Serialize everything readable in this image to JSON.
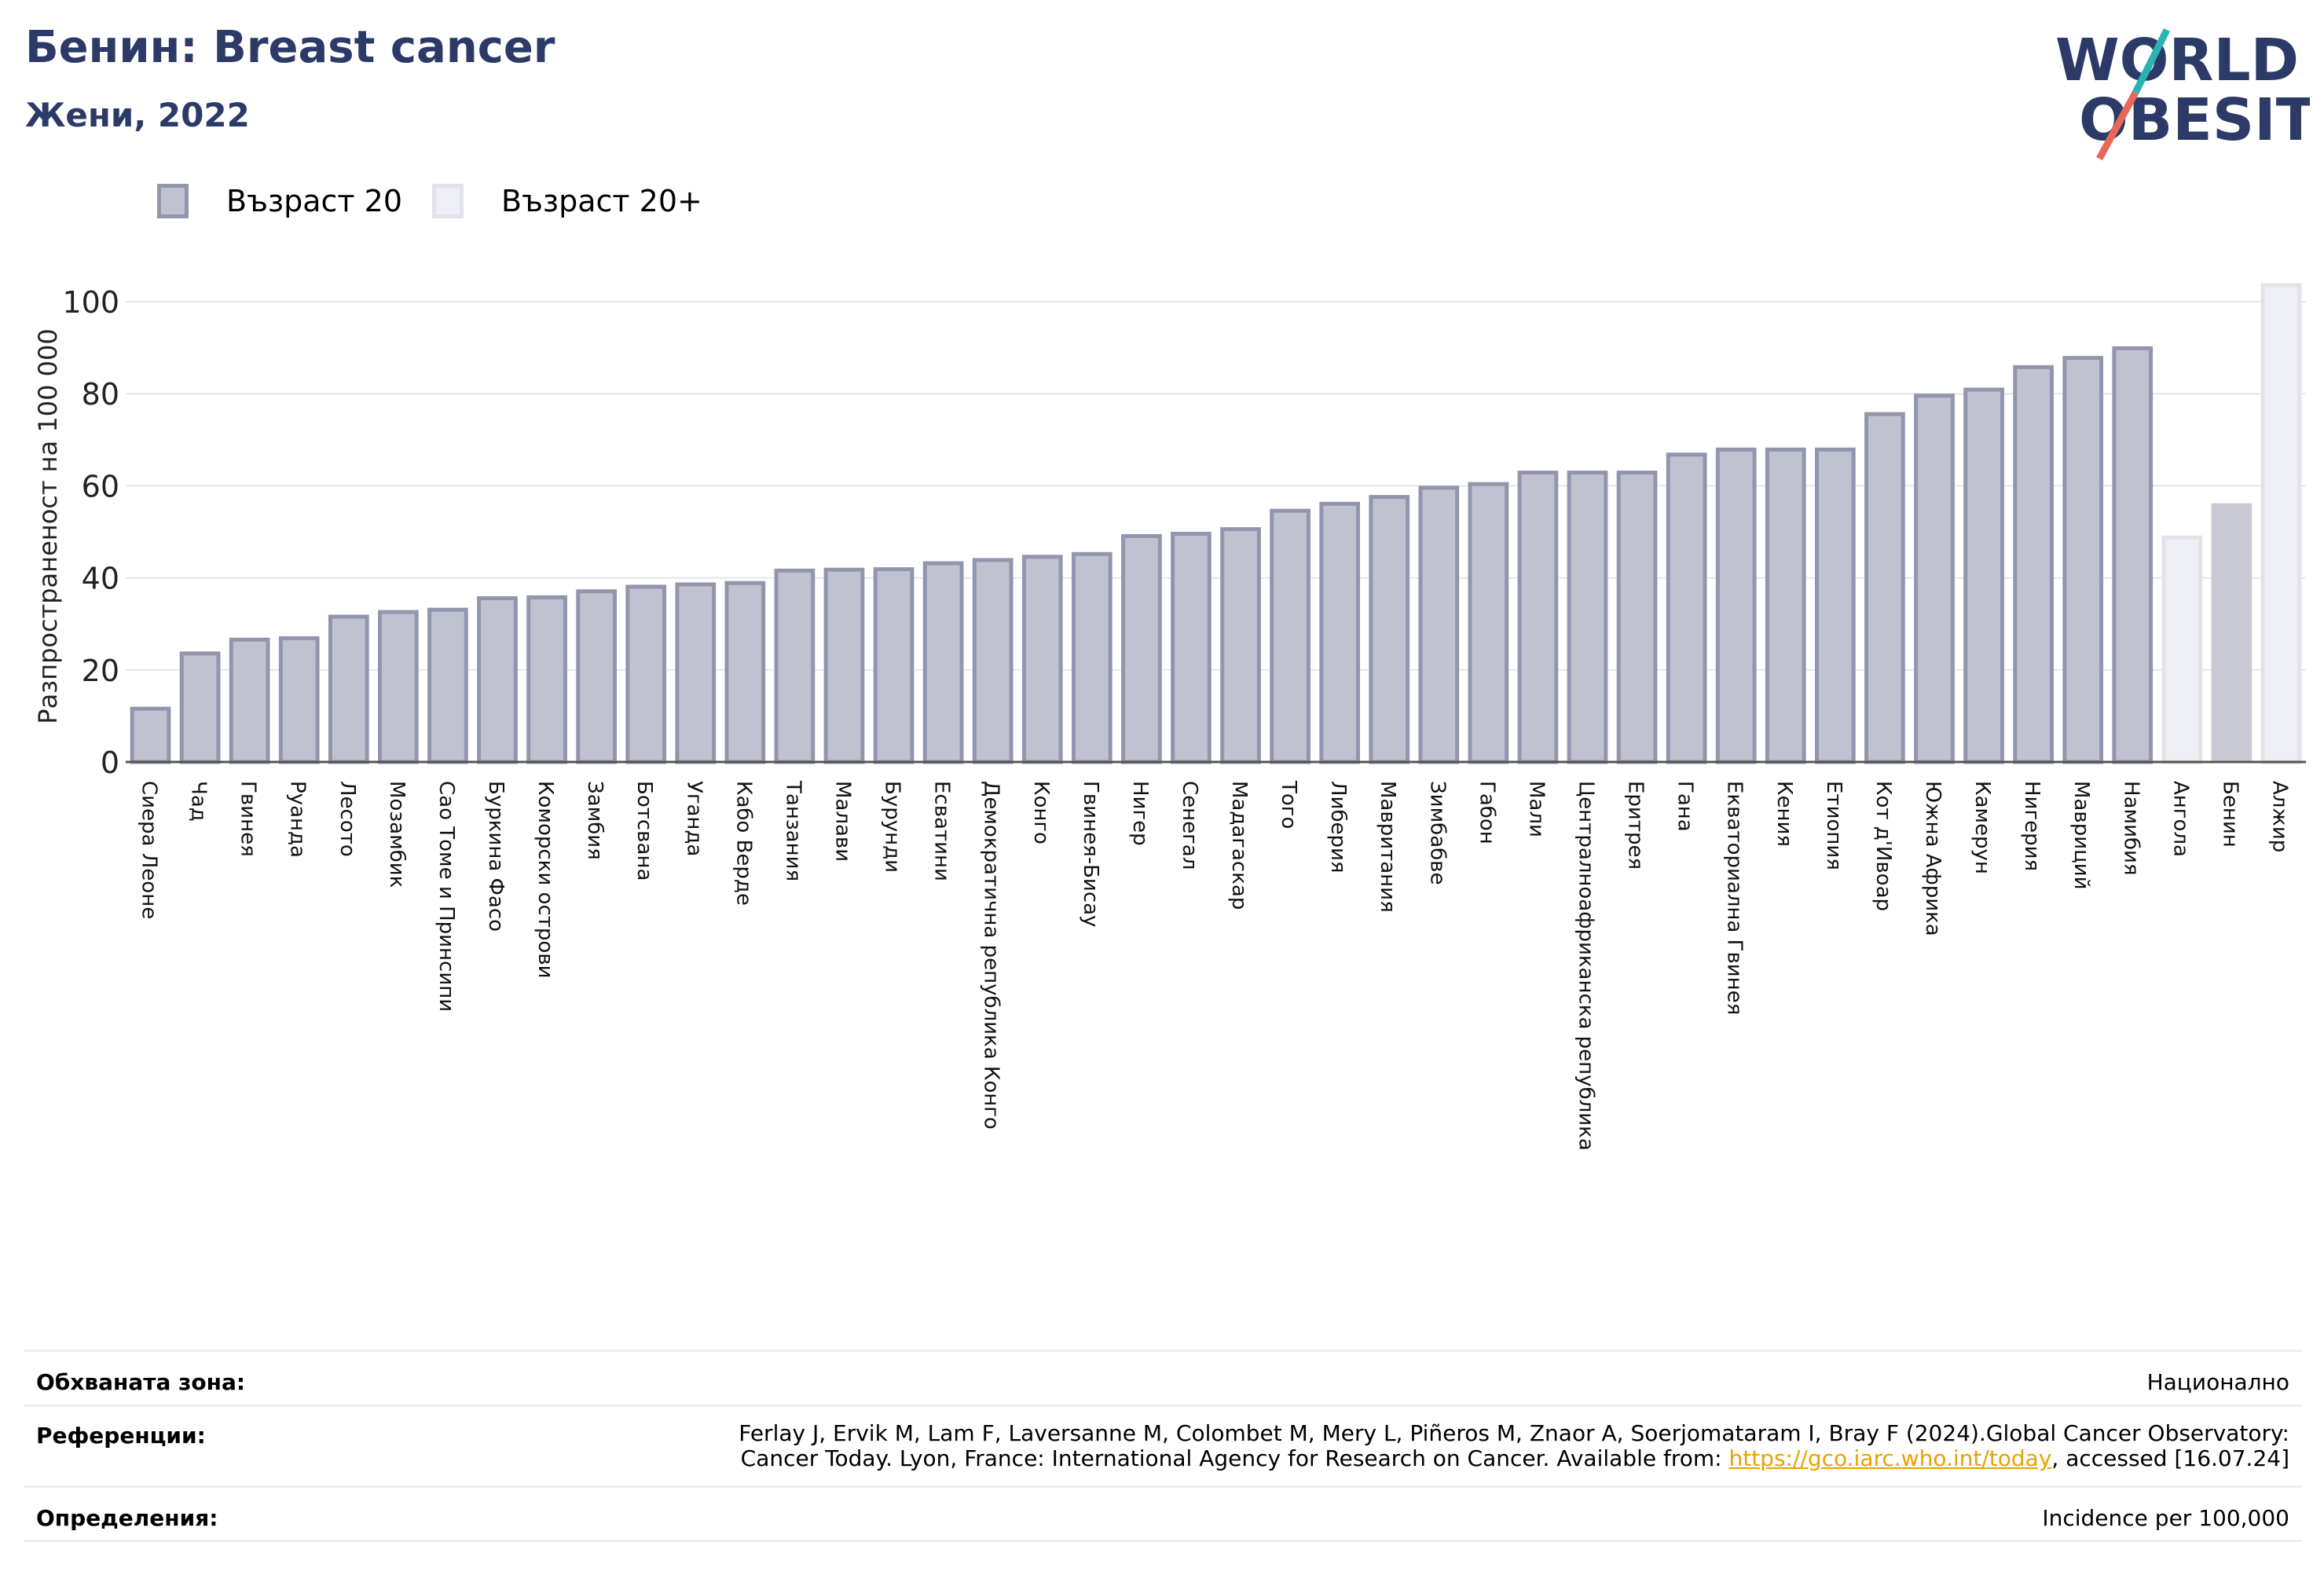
{
  "header": {
    "title": "Бенин: Breast cancer",
    "subtitle": "Жени, 2022"
  },
  "logo": {
    "line1": "WORLD",
    "line2": "OBESITY"
  },
  "colors": {
    "accent": "#2b3a67",
    "bar_fill": "#c0c2cf",
    "bar_stroke": "#9196ae",
    "highlight_fill": "#c9cad6",
    "light_fill": "#eeeff4",
    "light_stroke": "#e2e3ea",
    "link": "#e8a200"
  },
  "legend": [
    {
      "label": "Възраст 20",
      "style": "bar"
    },
    {
      "label": "Възраст 20+",
      "style": "light"
    }
  ],
  "chart_data": {
    "type": "bar",
    "ylabel": "Разпространеност  на 100 000",
    "ylim": [
      0,
      105
    ],
    "yticks": [
      0,
      20,
      40,
      60,
      80,
      100
    ],
    "grid": true,
    "legend_position": "top-left",
    "categories": [
      "Сиера Леоне",
      "Чад",
      "Гвинея",
      "Руанда",
      "Лесото",
      "Мозамбик",
      "Сао Томе и Принсипи",
      "Буркина Фасо",
      "Коморски острови",
      "Замбия",
      "Ботсвана",
      "Уганда",
      "Кабо Верде",
      "Танзания",
      "Малави",
      "Бурунди",
      "Есватини",
      "Демократична република Конго",
      "Конго",
      "Гвинея-Бисау",
      "Нигер",
      "Сенегал",
      "Мадагаскар",
      "Того",
      "Либерия",
      "Мавритания",
      "Зимбабве",
      "Габон",
      "Мали",
      "Централноафриканска република",
      "Еритрея",
      "Гана",
      "Екваториална Гвинея",
      "Кения",
      "Етиопия",
      "Кот д'Ивоар",
      "Южна Африка",
      "Камерун",
      "Нигерия",
      "Мавриций",
      "Намибия",
      "Ангола",
      "Бенин",
      "Алжир"
    ],
    "values": [
      12,
      24,
      27,
      27.3,
      32,
      33,
      33.5,
      36,
      36.2,
      37.5,
      38.5,
      39,
      39.3,
      42,
      42.2,
      42.3,
      43.6,
      44.3,
      45,
      45.6,
      49.5,
      50,
      51,
      55,
      56.5,
      58,
      60,
      60.8,
      63.3,
      63.3,
      63.3,
      67.2,
      68.3,
      68.3,
      68.3,
      76,
      80,
      81.3,
      86.2,
      88.2,
      90.3,
      49.2,
      56.2,
      104
    ],
    "styles": [
      "bar",
      "bar",
      "bar",
      "bar",
      "bar",
      "bar",
      "bar",
      "bar",
      "bar",
      "bar",
      "bar",
      "bar",
      "bar",
      "bar",
      "bar",
      "bar",
      "bar",
      "bar",
      "bar",
      "bar",
      "bar",
      "bar",
      "bar",
      "bar",
      "bar",
      "bar",
      "bar",
      "bar",
      "bar",
      "bar",
      "bar",
      "bar",
      "bar",
      "bar",
      "bar",
      "bar",
      "bar",
      "bar",
      "bar",
      "bar",
      "bar",
      "light",
      "highlight",
      "light"
    ]
  },
  "footer": {
    "coverage_label": "Обхваната зона:",
    "coverage_value": "Национално",
    "references_label": "Референции:",
    "references_line1": "Ferlay J, Ervik M, Lam F, Laversanne M, Colombet M, Mery L, Piñeros M, Znaor A, Soerjomataram I, Bray F (2024).Global Cancer Observatory:",
    "references_line2_prefix": "Cancer Today. Lyon, France: International Agency for Research on Cancer. Available from: ",
    "references_link": "https://gco.iarc.who.int/today",
    "references_line2_suffix": ", accessed [16.07.24]",
    "definitions_label": "Определения:",
    "definitions_value": "Incidence per 100,000"
  }
}
